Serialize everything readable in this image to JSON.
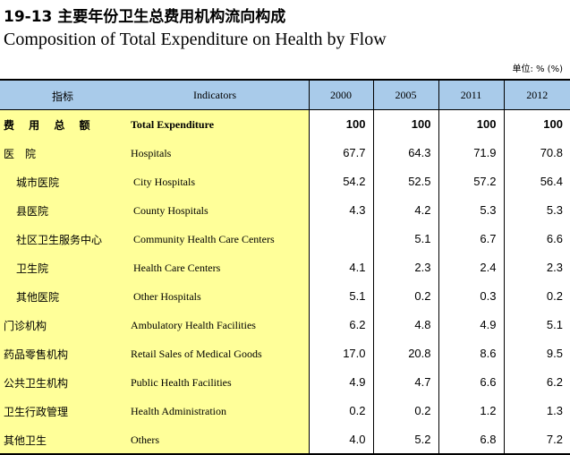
{
  "title_zh": "19-13 主要年份卫生总费用机构流向构成",
  "title_en": "Composition of Total Expenditure on Health by Flow",
  "unit": "单位: % (%)",
  "header": {
    "indicator_zh": "指标",
    "indicator_en": "Indicators",
    "years": [
      "2000",
      "2005",
      "2011",
      "2012"
    ]
  },
  "rows": [
    {
      "zh": "费 用 总 额",
      "en": "Total Expenditure",
      "level": 0,
      "bold": true,
      "values": [
        "100",
        "100",
        "100",
        "100"
      ]
    },
    {
      "zh": "医　院",
      "en": "Hospitals",
      "level": 0,
      "bold": false,
      "values": [
        "67.7",
        "64.3",
        "71.9",
        "70.8"
      ]
    },
    {
      "zh": "城市医院",
      "en": "City Hospitals",
      "level": 1,
      "bold": false,
      "values": [
        "54.2",
        "52.5",
        "57.2",
        "56.4"
      ]
    },
    {
      "zh": "县医院",
      "en": "County Hospitals",
      "level": 1,
      "bold": false,
      "values": [
        "4.3",
        "4.2",
        "5.3",
        "5.3"
      ]
    },
    {
      "zh": "社区卫生服务中心",
      "en": "Community Health Care Centers",
      "level": 1,
      "bold": false,
      "values": [
        "",
        "5.1",
        "6.7",
        "6.6"
      ]
    },
    {
      "zh": "卫生院",
      "en": "Health Care Centers",
      "level": 1,
      "bold": false,
      "values": [
        "4.1",
        "2.3",
        "2.4",
        "2.3"
      ]
    },
    {
      "zh": "其他医院",
      "en": "Other Hospitals",
      "level": 1,
      "bold": false,
      "values": [
        "5.1",
        "0.2",
        "0.3",
        "0.2"
      ]
    },
    {
      "zh": "门诊机构",
      "en": "Ambulatory Health Facilities",
      "level": 0,
      "bold": false,
      "values": [
        "6.2",
        "4.8",
        "4.9",
        "5.1"
      ]
    },
    {
      "zh": "药品零售机构",
      "en": "Retail Sales of Medical Goods",
      "level": 0,
      "bold": false,
      "values": [
        "17.0",
        "20.8",
        "8.6",
        "9.5"
      ]
    },
    {
      "zh": "公共卫生机构",
      "en": "Public Health Facilities",
      "level": 0,
      "bold": false,
      "values": [
        "4.9",
        "4.7",
        "6.6",
        "6.2"
      ]
    },
    {
      "zh": "卫生行政管理",
      "en": "Health Administration",
      "level": 0,
      "bold": false,
      "values": [
        "0.2",
        "0.2",
        "1.2",
        "1.3"
      ]
    },
    {
      "zh": "其他卫生",
      "en": "Others",
      "level": 0,
      "bold": false,
      "values": [
        "4.0",
        "5.2",
        "6.8",
        "7.2"
      ]
    }
  ],
  "colors": {
    "header_bg": "#a9cbea",
    "indicator_bg": "#ffff99"
  }
}
